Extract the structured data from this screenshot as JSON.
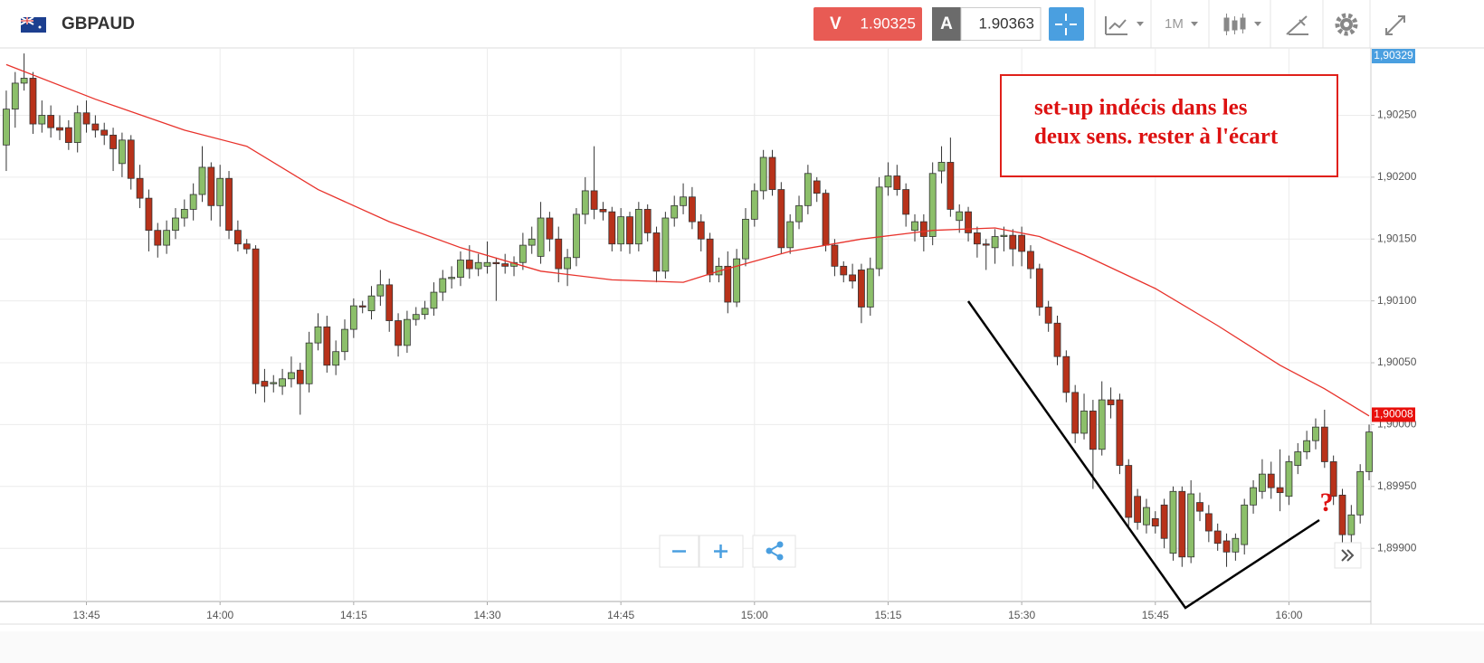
{
  "toolbar": {
    "symbol": "GBPAUD",
    "sell_label": "V",
    "sell_price": "1.90325",
    "buy_label": "A",
    "buy_price": "1.90363",
    "timeframe": "1M"
  },
  "chart_data": {
    "type": "candlestick",
    "x": [
      816,
      817,
      818,
      819,
      820,
      821,
      822,
      823,
      824,
      825,
      826,
      827,
      828,
      829,
      830,
      831,
      832,
      833,
      834,
      835,
      836,
      837,
      838,
      839,
      840,
      841,
      842,
      843,
      844,
      845,
      846,
      847,
      848,
      849,
      850,
      851,
      852,
      853,
      854,
      855,
      856,
      857,
      858,
      859,
      860,
      861,
      862,
      863,
      864,
      865,
      866,
      867,
      868,
      869,
      870,
      871,
      872,
      873,
      874,
      875,
      876,
      877,
      878,
      879,
      880,
      881,
      882,
      883,
      884,
      885,
      886,
      887,
      888,
      889,
      890,
      891,
      892,
      893,
      894,
      895,
      896,
      897,
      898,
      899,
      900,
      901,
      902,
      903,
      904,
      905,
      906,
      907,
      908,
      909,
      910,
      911,
      912,
      913,
      914,
      915,
      916,
      917,
      918,
      919,
      920,
      921,
      922,
      923,
      924,
      925,
      926,
      927,
      928,
      929,
      930,
      931,
      932,
      933,
      934,
      935,
      936,
      937,
      938,
      939,
      940,
      941,
      942,
      943,
      944,
      945,
      946,
      947,
      948,
      949,
      950,
      951,
      952,
      953,
      954,
      955,
      956,
      957,
      958,
      959,
      960,
      961,
      962,
      963,
      964,
      965,
      966,
      967,
      968,
      969
    ],
    "candles": [
      [
        1.90226,
        1.9027,
        1.90205,
        1.90255
      ],
      [
        1.90255,
        1.90285,
        1.9024,
        1.90276
      ],
      [
        1.90276,
        1.903,
        1.9027,
        1.9028
      ],
      [
        1.9028,
        1.90285,
        1.90235,
        1.90243
      ],
      [
        1.90243,
        1.90262,
        1.90236,
        1.9025
      ],
      [
        1.9025,
        1.90258,
        1.90232,
        1.9024
      ],
      [
        1.9024,
        1.9025,
        1.9023,
        1.90238
      ],
      [
        1.9024,
        1.90246,
        1.90222,
        1.90228
      ],
      [
        1.90228,
        1.90258,
        1.9022,
        1.90252
      ],
      [
        1.90252,
        1.90262,
        1.90236,
        1.90243
      ],
      [
        1.90243,
        1.9025,
        1.90232,
        1.90238
      ],
      [
        1.90238,
        1.90244,
        1.90226,
        1.90234
      ],
      [
        1.90234,
        1.9024,
        1.90205,
        1.90223
      ],
      [
        1.90211,
        1.90236,
        1.902,
        1.9023
      ],
      [
        1.9023,
        1.90234,
        1.9019,
        1.90199
      ],
      [
        1.90199,
        1.9021,
        1.90175,
        1.90183
      ],
      [
        1.90183,
        1.9019,
        1.9014,
        1.90157
      ],
      [
        1.90157,
        1.90163,
        1.90135,
        1.90145
      ],
      [
        1.90145,
        1.90165,
        1.90138,
        1.90157
      ],
      [
        1.90157,
        1.90175,
        1.9015,
        1.90167
      ],
      [
        1.90167,
        1.90182,
        1.9016,
        1.90174
      ],
      [
        1.90174,
        1.90195,
        1.90165,
        1.90186
      ],
      [
        1.90186,
        1.90225,
        1.9018,
        1.90208
      ],
      [
        1.90208,
        1.90212,
        1.90165,
        1.90177
      ],
      [
        1.90177,
        1.9021,
        1.9016,
        1.90199
      ],
      [
        1.90199,
        1.90205,
        1.9015,
        1.90157
      ],
      [
        1.90157,
        1.90165,
        1.9014,
        1.90146
      ],
      [
        1.90146,
        1.9015,
        1.90138,
        1.90142
      ],
      [
        1.90142,
        1.90145,
        1.90025,
        1.90033
      ],
      [
        1.90035,
        1.90045,
        1.90018,
        1.90031
      ],
      [
        1.90033,
        1.9004,
        1.90026,
        1.90034
      ],
      [
        1.90031,
        1.90045,
        1.90024,
        1.90037
      ],
      [
        1.90037,
        1.90055,
        1.9003,
        1.90042
      ],
      [
        1.90044,
        1.9005,
        1.90008,
        1.90033
      ],
      [
        1.90033,
        1.90075,
        1.90026,
        1.90066
      ],
      [
        1.90066,
        1.9009,
        1.9006,
        1.90079
      ],
      [
        1.90079,
        1.90088,
        1.90042,
        1.90048
      ],
      [
        1.90048,
        1.90068,
        1.9004,
        1.90059
      ],
      [
        1.90059,
        1.90085,
        1.90052,
        1.90077
      ],
      [
        1.90077,
        1.90102,
        1.9007,
        1.90096
      ],
      [
        1.90096,
        1.901,
        1.9009,
        1.90095
      ],
      [
        1.90092,
        1.90112,
        1.90085,
        1.90104
      ],
      [
        1.90104,
        1.90125,
        1.90096,
        1.90113
      ],
      [
        1.90113,
        1.90118,
        1.90075,
        1.90084
      ],
      [
        1.90084,
        1.9009,
        1.90055,
        1.90064
      ],
      [
        1.90064,
        1.90092,
        1.90058,
        1.90085
      ],
      [
        1.90085,
        1.90095,
        1.9008,
        1.90089
      ],
      [
        1.90089,
        1.901,
        1.90085,
        1.90094
      ],
      [
        1.90094,
        1.90115,
        1.90088,
        1.90107
      ],
      [
        1.90107,
        1.90125,
        1.901,
        1.90118
      ],
      [
        1.90118,
        1.90128,
        1.9011,
        1.90119
      ],
      [
        1.90119,
        1.9014,
        1.90112,
        1.90133
      ],
      [
        1.90133,
        1.90145,
        1.90118,
        1.90126
      ],
      [
        1.90126,
        1.90138,
        1.9012,
        1.90131
      ],
      [
        1.90128,
        1.90148,
        1.90122,
        1.90131
      ],
      [
        1.90131,
        1.90135,
        1.901,
        1.9013
      ],
      [
        1.9013,
        1.90138,
        1.90122,
        1.90128
      ],
      [
        1.90128,
        1.90136,
        1.9012,
        1.90131
      ],
      [
        1.90131,
        1.90155,
        1.90125,
        1.90145
      ],
      [
        1.90145,
        1.9016,
        1.90138,
        1.9015
      ],
      [
        1.90136,
        1.9018,
        1.9013,
        1.90167
      ],
      [
        1.90167,
        1.90172,
        1.9014,
        1.9015
      ],
      [
        1.9015,
        1.9016,
        1.90115,
        1.90126
      ],
      [
        1.90126,
        1.90142,
        1.90112,
        1.90135
      ],
      [
        1.90135,
        1.90175,
        1.90128,
        1.9017
      ],
      [
        1.9017,
        1.902,
        1.90162,
        1.90189
      ],
      [
        1.90189,
        1.90225,
        1.90166,
        1.90174
      ],
      [
        1.90174,
        1.9018,
        1.90165,
        1.90172
      ],
      [
        1.90172,
        1.90176,
        1.9014,
        1.90146
      ],
      [
        1.90146,
        1.90175,
        1.9014,
        1.90168
      ],
      [
        1.90168,
        1.90172,
        1.90138,
        1.90146
      ],
      [
        1.90146,
        1.9018,
        1.9014,
        1.90174
      ],
      [
        1.90174,
        1.90178,
        1.90148,
        1.90155
      ],
      [
        1.90155,
        1.9016,
        1.90115,
        1.90124
      ],
      [
        1.90124,
        1.90172,
        1.90118,
        1.90167
      ],
      [
        1.90167,
        1.90185,
        1.9016,
        1.90177
      ],
      [
        1.90177,
        1.90195,
        1.9017,
        1.90184
      ],
      [
        1.90184,
        1.90192,
        1.90158,
        1.90164
      ],
      [
        1.90164,
        1.9017,
        1.9014,
        1.9015
      ],
      [
        1.9015,
        1.90155,
        1.90115,
        1.90121
      ],
      [
        1.90121,
        1.90135,
        1.90115,
        1.90128
      ],
      [
        1.90128,
        1.9014,
        1.9009,
        1.90099
      ],
      [
        1.90099,
        1.90142,
        1.90095,
        1.90134
      ],
      [
        1.90134,
        1.90175,
        1.90128,
        1.90166
      ],
      [
        1.90166,
        1.90195,
        1.9016,
        1.90189
      ],
      [
        1.90189,
        1.90222,
        1.90182,
        1.90216
      ],
      [
        1.90216,
        1.90222,
        1.90185,
        1.9019
      ],
      [
        1.9019,
        1.90196,
        1.90138,
        1.90143
      ],
      [
        1.90143,
        1.9017,
        1.90138,
        1.90164
      ],
      [
        1.90164,
        1.90185,
        1.90158,
        1.90177
      ],
      [
        1.90177,
        1.9021,
        1.9017,
        1.90203
      ],
      [
        1.90197,
        1.902,
        1.9018,
        1.90187
      ],
      [
        1.90187,
        1.9019,
        1.9014,
        1.90145
      ],
      [
        1.90145,
        1.9015,
        1.9012,
        1.90128
      ],
      [
        1.90128,
        1.90132,
        1.90115,
        1.90121
      ],
      [
        1.90121,
        1.9013,
        1.9011,
        1.90116
      ],
      [
        1.90125,
        1.9013,
        1.90082,
        1.90095
      ],
      [
        1.90095,
        1.90135,
        1.90088,
        1.90126
      ],
      [
        1.90126,
        1.902,
        1.9012,
        1.90192
      ],
      [
        1.90192,
        1.90212,
        1.90185,
        1.90201
      ],
      [
        1.90201,
        1.9021,
        1.90185,
        1.9019
      ],
      [
        1.9019,
        1.90195,
        1.9016,
        1.9017
      ],
      [
        1.90157,
        1.9017,
        1.90148,
        1.90164
      ],
      [
        1.90164,
        1.9017,
        1.9014,
        1.90152
      ],
      [
        1.90152,
        1.90212,
        1.90145,
        1.90203
      ],
      [
        1.90205,
        1.90225,
        1.90195,
        1.90212
      ],
      [
        1.90212,
        1.90232,
        1.90168,
        1.90174
      ],
      [
        1.90165,
        1.90178,
        1.90155,
        1.90172
      ],
      [
        1.90172,
        1.90176,
        1.90148,
        1.90155
      ],
      [
        1.90155,
        1.9016,
        1.90135,
        1.90146
      ],
      [
        1.90146,
        1.9015,
        1.90125,
        1.90145
      ],
      [
        1.90143,
        1.90158,
        1.9013,
        1.90152
      ],
      [
        1.90152,
        1.9016,
        1.9014,
        1.90153
      ],
      [
        1.90153,
        1.90158,
        1.90128,
        1.90142
      ],
      [
        1.90153,
        1.9016,
        1.90128,
        1.9014
      ],
      [
        1.9014,
        1.90145,
        1.90118,
        1.90126
      ],
      [
        1.90126,
        1.9013,
        1.90088,
        1.90095
      ],
      [
        1.90095,
        1.901,
        1.90075,
        1.90082
      ],
      [
        1.90082,
        1.90088,
        1.90048,
        1.90055
      ],
      [
        1.90055,
        1.9006,
        1.90018,
        1.90026
      ],
      [
        1.90026,
        1.90032,
        1.89985,
        1.89993
      ],
      [
        1.89993,
        1.90025,
        1.89988,
        1.90011
      ],
      [
        1.90011,
        1.9002,
        1.89948,
        1.8998
      ],
      [
        1.8998,
        1.90035,
        1.89975,
        1.9002
      ],
      [
        1.9002,
        1.9003,
        1.90005,
        1.90016
      ],
      [
        1.9002,
        1.90025,
        1.8996,
        1.89967
      ],
      [
        1.89967,
        1.89972,
        1.89918,
        1.89925
      ],
      [
        1.89942,
        1.89948,
        1.89915,
        1.89921
      ],
      [
        1.89919,
        1.8994,
        1.89912,
        1.89933
      ],
      [
        1.89924,
        1.8993,
        1.89912,
        1.89918
      ],
      [
        1.89935,
        1.8994,
        1.899,
        1.89908
      ],
      [
        1.89896,
        1.8995,
        1.8989,
        1.89946
      ],
      [
        1.89946,
        1.8995,
        1.89885,
        1.89893
      ],
      [
        1.89893,
        1.89955,
        1.89888,
        1.89944
      ],
      [
        1.89937,
        1.89945,
        1.89922,
        1.8993
      ],
      [
        1.89928,
        1.89935,
        1.89905,
        1.89914
      ],
      [
        1.89914,
        1.8992,
        1.89898,
        1.89904
      ],
      [
        1.89906,
        1.89912,
        1.89885,
        1.89897
      ],
      [
        1.89897,
        1.89912,
        1.8989,
        1.89908
      ],
      [
        1.89903,
        1.8994,
        1.89895,
        1.89935
      ],
      [
        1.89935,
        1.89955,
        1.89928,
        1.89949
      ],
      [
        1.89946,
        1.89972,
        1.8994,
        1.8996
      ],
      [
        1.8996,
        1.8997,
        1.8994,
        1.89949
      ],
      [
        1.89949,
        1.8998,
        1.8993,
        1.89945
      ],
      [
        1.89942,
        1.89975,
        1.89935,
        1.8997
      ],
      [
        1.89967,
        1.89985,
        1.8996,
        1.89978
      ],
      [
        1.89978,
        1.89995,
        1.89972,
        1.89987
      ],
      [
        1.89987,
        1.90005,
        1.8998,
        1.89998
      ],
      [
        1.89998,
        1.90012,
        1.89965,
        1.8997
      ],
      [
        1.8997,
        1.89975,
        1.89935,
        1.89942
      ],
      [
        1.89943,
        1.89948,
        1.899,
        1.89911
      ],
      [
        1.89911,
        1.89935,
        1.89905,
        1.89927
      ],
      [
        1.89927,
        1.89968,
        1.8992,
        1.89962
      ],
      [
        1.89962,
        1.9,
        1.89955,
        1.89994
      ]
    ],
    "up_color": "#8cbf6a",
    "down_color": "#b8321a",
    "moving_average": {
      "color": "#e8322b",
      "x": [
        816,
        826,
        836,
        843,
        851,
        859,
        867,
        876,
        884,
        892,
        896,
        904,
        912,
        920,
        927,
        932,
        937,
        945,
        952,
        959,
        964,
        969
      ],
      "values": [
        1.90291,
        1.90263,
        1.90238,
        1.90225,
        1.9019,
        1.90164,
        1.90143,
        1.90124,
        1.90117,
        1.90115,
        1.90124,
        1.9014,
        1.9015,
        1.90157,
        1.90159,
        1.90152,
        1.90137,
        1.9011,
        1.9008,
        1.90048,
        1.90029,
        1.90007
      ]
    },
    "xlim": [
      815.6,
      969.2
    ],
    "xticks": [
      {
        "value": 825,
        "label": "13:45"
      },
      {
        "value": 840,
        "label": "14:00"
      },
      {
        "value": 855,
        "label": "14:15"
      },
      {
        "value": 870,
        "label": "14:30"
      },
      {
        "value": 885,
        "label": "14:45"
      },
      {
        "value": 900,
        "label": "15:00"
      },
      {
        "value": 915,
        "label": "15:15"
      },
      {
        "value": 930,
        "label": "15:30"
      },
      {
        "value": 945,
        "label": "15:45"
      },
      {
        "value": 960,
        "label": "16:00"
      }
    ],
    "ylim": [
      1.89857,
      1.90303
    ],
    "yticks": [
      {
        "value": 1.899,
        "label": "1,89900"
      },
      {
        "value": 1.8995,
        "label": "1,89950"
      },
      {
        "value": 1.9,
        "label": "1,90000"
      },
      {
        "value": 1.9005,
        "label": "1,90050"
      },
      {
        "value": 1.901,
        "label": "1,90100"
      },
      {
        "value": 1.9015,
        "label": "1,90150"
      },
      {
        "value": 1.902,
        "label": "1,90200"
      },
      {
        "value": 1.9025,
        "label": "1,90250"
      }
    ],
    "grid": true,
    "price_markers": [
      {
        "value": 1.90329,
        "label": "1,90329",
        "color": "#4a9fe0"
      },
      {
        "value": 1.90008,
        "label": "1,90008",
        "color": "#e8100c"
      }
    ],
    "annotation": [
      "set-up indécis dans les",
      "deux sens. rester à l'écart"
    ],
    "question": "?"
  }
}
